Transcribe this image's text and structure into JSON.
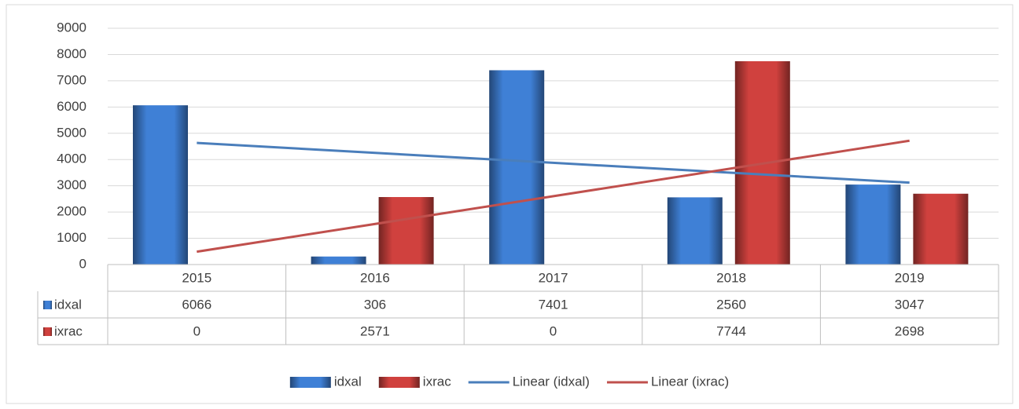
{
  "chart_data": {
    "type": "bar",
    "categories": [
      "2015",
      "2016",
      "2017",
      "2018",
      "2019"
    ],
    "series": [
      {
        "name": "idxal",
        "color": "#3f80d6",
        "values": [
          6066,
          306,
          7401,
          2560,
          3047
        ],
        "trendline": "linear",
        "trendline_name": "Linear (idxal)",
        "trendline_color": "#4a7ebb"
      },
      {
        "name": "ixrac",
        "color": "#d0413e",
        "values": [
          0,
          2571,
          0,
          7744,
          2698
        ],
        "trendline": "linear",
        "trendline_name": "Linear (ixrac)",
        "trendline_color": "#c0504d"
      }
    ],
    "ylim": [
      0,
      9000
    ],
    "yticks": [
      0,
      1000,
      2000,
      3000,
      4000,
      5000,
      6000,
      7000,
      8000,
      9000
    ],
    "grid": true,
    "data_table": true,
    "legend": "bottom"
  }
}
